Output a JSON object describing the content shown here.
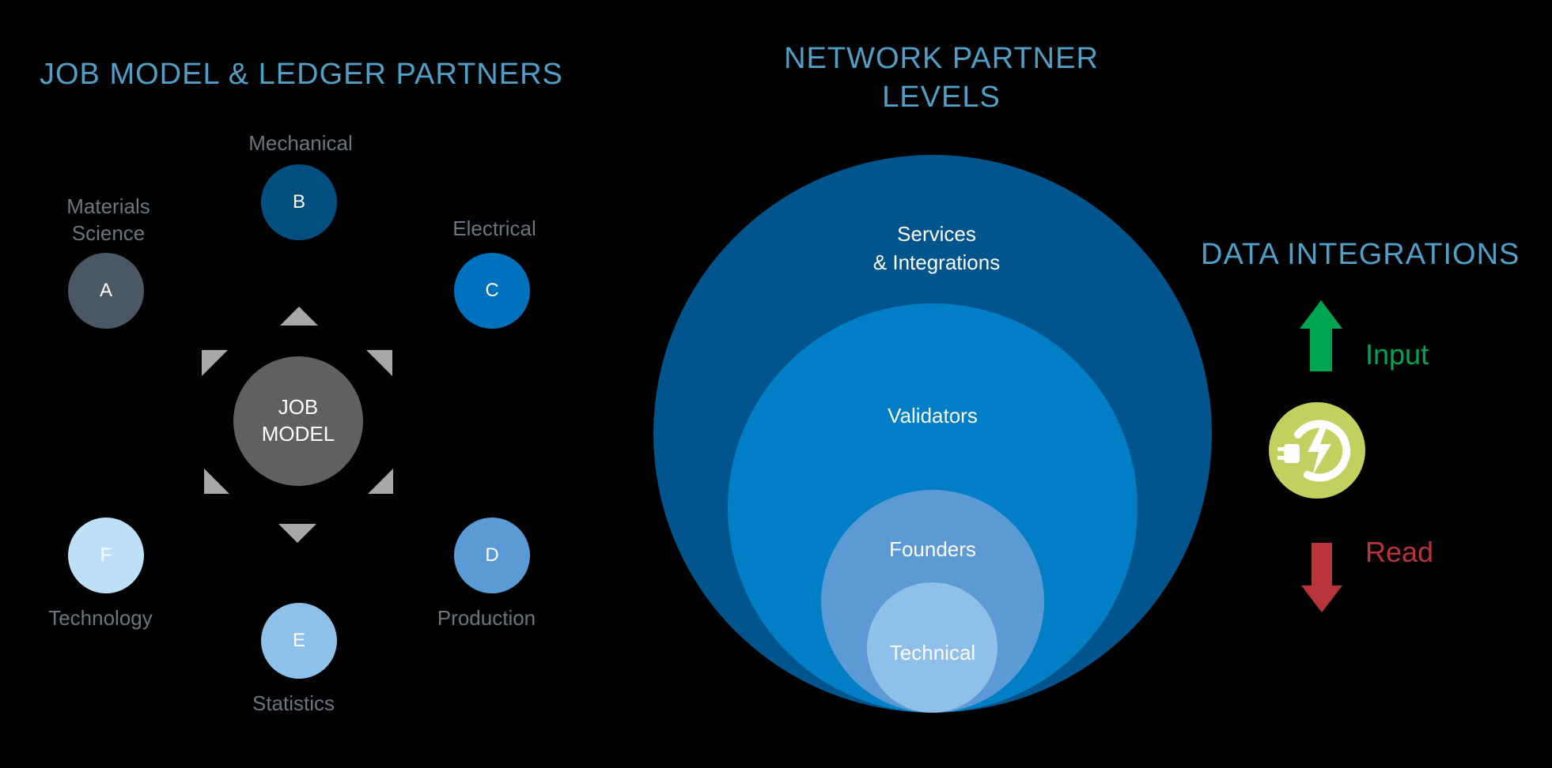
{
  "left_panel": {
    "title": "JOB MODEL & LEDGER PARTNERS",
    "hub": {
      "line1": "JOB",
      "line2": "MODEL"
    },
    "partners": [
      {
        "letter": "A",
        "label_line1": "Materials",
        "label_line2": "Science",
        "color": "#4a5866"
      },
      {
        "letter": "B",
        "label_line1": "Mechanical",
        "label_line2": "",
        "color": "#024f80"
      },
      {
        "letter": "C",
        "label_line1": "Electrical",
        "label_line2": "",
        "color": "#0071bc"
      },
      {
        "letter": "D",
        "label_line1": "Production",
        "label_line2": "",
        "color": "#5b9bd5"
      },
      {
        "letter": "E",
        "label_line1": "Statistics",
        "label_line2": "",
        "color": "#8ec1ea"
      },
      {
        "letter": "F",
        "label_line1": "Technology",
        "label_line2": "",
        "color": "#bde0f8"
      }
    ]
  },
  "middle_panel": {
    "title": "NETWORK PARTNER LEVELS",
    "levels": [
      {
        "label_line1": "Services",
        "label_line2": "& Integrations",
        "color": "#02558c"
      },
      {
        "label_line1": "Validators",
        "label_line2": "",
        "color": "#007ec6"
      },
      {
        "label_line1": "Founders",
        "label_line2": "",
        "color": "#5b9ad4"
      },
      {
        "label_line1": "Technical",
        "label_line2": "",
        "color": "#8fc0e9"
      }
    ]
  },
  "right_panel": {
    "title": "DATA INTEGRATIONS",
    "input_label": "Input",
    "read_label": "Read",
    "input_color": "#00a551",
    "read_color": "#b9343a",
    "icon_color": "#c3cf5f",
    "icon": "plug-power-icon"
  }
}
